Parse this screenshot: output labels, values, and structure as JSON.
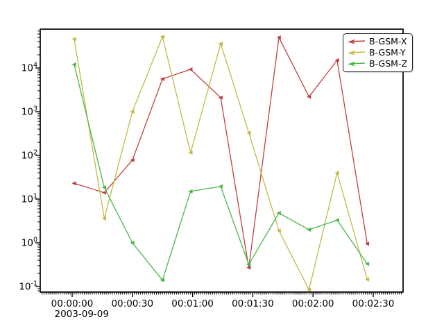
{
  "figure": {
    "background": "#ffffff",
    "frame_color": "#000000",
    "date_label": "2003-09-09"
  },
  "legend": {
    "position": "top-right",
    "entries": [
      {
        "label": "B-GSM-X",
        "color": "#bf4040",
        "marker": "left-arrow-icon"
      },
      {
        "label": "B-GSM-Y",
        "color": "#c3ba42",
        "marker": "left-arrow-icon"
      },
      {
        "label": "B-GSM-Z",
        "color": "#45b745",
        "marker": "left-arrow-icon"
      }
    ]
  },
  "chart_data": {
    "type": "line",
    "title": "",
    "xlabel": "",
    "ylabel": "",
    "y_scale": "log",
    "y_tick_exponents": [
      -1,
      0,
      1,
      2,
      3,
      4
    ],
    "ylim": [
      0.075,
      78000
    ],
    "x_unit": "seconds since 2003-09-09 00:00:00",
    "xlim_seconds": [
      -16,
      165
    ],
    "x_major_tick_seconds": [
      0,
      30,
      60,
      90,
      120,
      150
    ],
    "x_tick_labels": [
      "00:00:00",
      "00:00:30",
      "00:01:00",
      "00:01:30",
      "00:02:00",
      "00:02:30"
    ],
    "x_minor_tick_interval_seconds": 1,
    "x": [
      1,
      16,
      30,
      45,
      59,
      74,
      88,
      103,
      118,
      132,
      147
    ],
    "series": [
      {
        "name": "B-GSM-X",
        "color": "#bf4040",
        "values": [
          23,
          14,
          78,
          5600,
          9300,
          2100,
          0.27,
          50000,
          2200,
          15000,
          0.95
        ]
      },
      {
        "name": "B-GSM-Y",
        "color": "#c3ba42",
        "values": [
          46000,
          3.6,
          1000,
          52000,
          115,
          36000,
          330,
          1.9,
          0.085,
          40,
          0.145
        ]
      },
      {
        "name": "B-GSM-Z",
        "color": "#45b745",
        "values": [
          12000,
          18.5,
          1.0,
          0.14,
          15,
          19.5,
          0.32,
          4.8,
          2.0,
          3.3,
          0.33
        ]
      }
    ],
    "legend_position": "upper right",
    "grid": false,
    "marker": "left-arrow"
  }
}
